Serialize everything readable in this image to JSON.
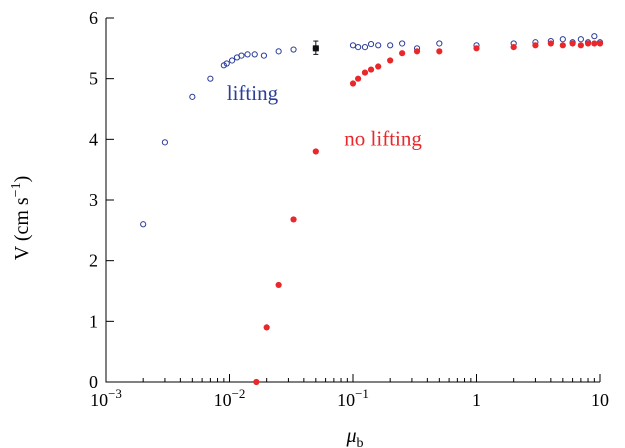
{
  "chart_data": {
    "type": "scatter",
    "title": "",
    "xlabel": "μ",
    "xlabel_sub": "b",
    "ylabel": "V (cm s",
    "ylabel_sup": "−1",
    "ylabel_close": ")",
    "xscale": "log",
    "xlim": [
      0.001,
      10
    ],
    "ylim": [
      0,
      6
    ],
    "grid": false,
    "x_ticks": [
      0.001,
      0.01,
      0.1,
      1,
      10
    ],
    "x_tick_labels": [
      {
        "base": "10",
        "exp": "−3"
      },
      {
        "base": "10",
        "exp": "−2"
      },
      {
        "base": "10",
        "exp": "−1"
      },
      {
        "base": "1",
        "exp": ""
      },
      {
        "base": "10",
        "exp": ""
      }
    ],
    "y_ticks": [
      0,
      1,
      2,
      3,
      4,
      5,
      6
    ],
    "y_tick_labels": [
      "0",
      "1",
      "2",
      "3",
      "4",
      "5",
      "6"
    ],
    "series": [
      {
        "name": "lifting",
        "color": "#2b3d9a",
        "marker": "open-circle",
        "points": [
          [
            0.002,
            2.6
          ],
          [
            0.003,
            3.95
          ],
          [
            0.005,
            4.7
          ],
          [
            0.007,
            5.0
          ],
          [
            0.009,
            5.22
          ],
          [
            0.0095,
            5.25
          ],
          [
            0.0105,
            5.3
          ],
          [
            0.0115,
            5.35
          ],
          [
            0.0125,
            5.38
          ],
          [
            0.014,
            5.4
          ],
          [
            0.016,
            5.4
          ],
          [
            0.019,
            5.38
          ],
          [
            0.025,
            5.45
          ],
          [
            0.033,
            5.48
          ],
          [
            0.05,
            5.5
          ],
          [
            0.1,
            5.55
          ],
          [
            0.11,
            5.52
          ],
          [
            0.125,
            5.52
          ],
          [
            0.14,
            5.57
          ],
          [
            0.16,
            5.55
          ],
          [
            0.2,
            5.55
          ],
          [
            0.25,
            5.58
          ],
          [
            0.33,
            5.5
          ],
          [
            0.5,
            5.58
          ],
          [
            1.0,
            5.55
          ],
          [
            2.0,
            5.58
          ],
          [
            3.0,
            5.6
          ],
          [
            4.0,
            5.62
          ],
          [
            5.0,
            5.65
          ],
          [
            6.0,
            5.6
          ],
          [
            7.0,
            5.65
          ],
          [
            8.0,
            5.6
          ],
          [
            9.0,
            5.7
          ],
          [
            10.0,
            5.6
          ]
        ]
      },
      {
        "name": "no lifting",
        "color": "#e8282a",
        "marker": "filled-circle",
        "points": [
          [
            0.0165,
            0.0
          ],
          [
            0.02,
            0.9
          ],
          [
            0.025,
            1.6
          ],
          [
            0.033,
            2.68
          ],
          [
            0.05,
            3.8
          ],
          [
            0.1,
            4.92
          ],
          [
            0.11,
            5.0
          ],
          [
            0.125,
            5.1
          ],
          [
            0.14,
            5.15
          ],
          [
            0.16,
            5.2
          ],
          [
            0.2,
            5.3
          ],
          [
            0.25,
            5.42
          ],
          [
            0.33,
            5.45
          ],
          [
            0.5,
            5.45
          ],
          [
            1.0,
            5.5
          ],
          [
            2.0,
            5.52
          ],
          [
            3.0,
            5.55
          ],
          [
            4.0,
            5.58
          ],
          [
            5.0,
            5.55
          ],
          [
            6.0,
            5.58
          ],
          [
            7.0,
            5.55
          ],
          [
            8.0,
            5.58
          ],
          [
            9.0,
            5.58
          ],
          [
            10.0,
            5.58
          ]
        ]
      }
    ],
    "error_marker": {
      "x": 0.05,
      "y": 5.5,
      "y_low": 5.4,
      "y_high": 5.62,
      "color": "#111111"
    },
    "annotations": [
      {
        "text": "lifting",
        "x": 0.0095,
        "y": 4.65,
        "color": "#2b3d9a"
      },
      {
        "text": "no lifting",
        "x": 0.085,
        "y": 3.9,
        "color": "#e8282a"
      }
    ]
  }
}
